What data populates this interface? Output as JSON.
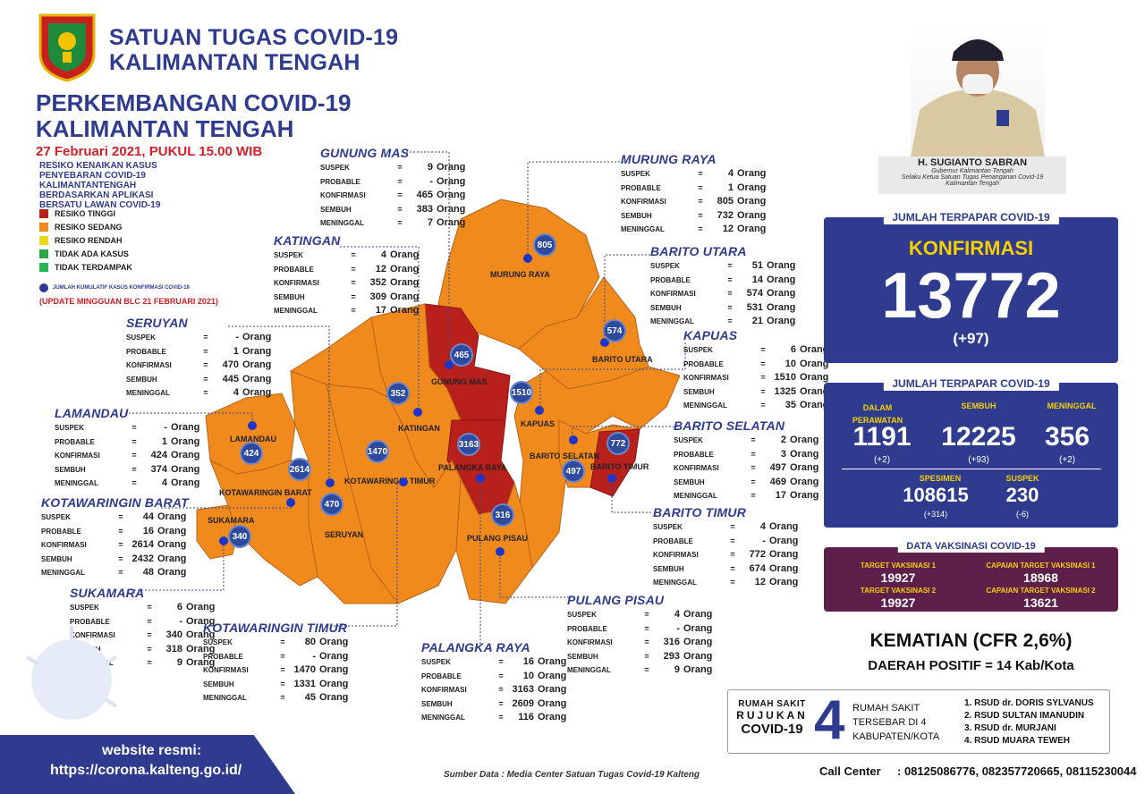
{
  "header": {
    "title_line1": "SATUAN TUGAS COVID-19",
    "title_line2": "KALIMANTAN TENGAH",
    "main_title_line1": "PERKEMBANGAN COVID-19",
    "main_title_line2": "KALIMANTAN TENGAH",
    "date": "27 Februari 2021, PUKUL 15.00 WIB"
  },
  "legend": {
    "heading": "RESIKO KENAIKAN KASUS PENYEBARAN COVID-19 KALIMANTANTENGAH BERDASARKAN APLIKASI BERSATU LAWAN COVID-19",
    "items": [
      {
        "label": "RESIKO TINGGI",
        "color": "#b8201c"
      },
      {
        "label": "RESIKO SEDANG",
        "color": "#f08a1d"
      },
      {
        "label": "RESIKO RENDAH",
        "color": "#e8d81a"
      },
      {
        "label": "TIDAK ADA KASUS",
        "color": "#2aa848"
      },
      {
        "label": "TIDAK TERDAMPAK",
        "color": "#2bb35a"
      }
    ],
    "note": "JUMLAH KUMULATIF KASUS KONFIRMASI COVID-19",
    "update": "(UPDATE MINGGUAN BLC 21 FEBRUARI 2021)"
  },
  "row_labels": {
    "suspek": "SUSPEK",
    "probable": "PROBABLE",
    "konfirmasi": "KONFIRMASI",
    "sembuh": "SEMBUH",
    "meninggal": "MENINGGAL",
    "eq": "=",
    "unit": "Orang"
  },
  "regions": {
    "gunung_mas": {
      "name": "GUNUNG MAS",
      "suspek": "9",
      "probable": "-",
      "konfirmasi": "465",
      "sembuh": "383",
      "meninggal": "7"
    },
    "murung_raya": {
      "name": "MURUNG RAYA",
      "suspek": "4",
      "probable": "1",
      "konfirmasi": "805",
      "sembuh": "732",
      "meninggal": "12"
    },
    "katingan": {
      "name": "KATINGAN",
      "suspek": "4",
      "probable": "12",
      "konfirmasi": "352",
      "sembuh": "309",
      "meninggal": "17"
    },
    "barito_utara": {
      "name": "BARITO UTARA",
      "suspek": "51",
      "probable": "14",
      "konfirmasi": "574",
      "sembuh": "531",
      "meninggal": "21"
    },
    "seruyan": {
      "name": "SERUYAN",
      "suspek": "-",
      "probable": "1",
      "konfirmasi": "470",
      "sembuh": "445",
      "meninggal": "4"
    },
    "kapuas": {
      "name": "KAPUAS",
      "suspek": "6",
      "probable": "10",
      "konfirmasi": "1510",
      "sembuh": "1325",
      "meninggal": "35"
    },
    "lamandau": {
      "name": "LAMANDAU",
      "suspek": "-",
      "probable": "1",
      "konfirmasi": "424",
      "sembuh": "374",
      "meninggal": "4"
    },
    "barito_selatan": {
      "name": "BARITO SELATAN",
      "suspek": "2",
      "probable": "3",
      "konfirmasi": "497",
      "sembuh": "469",
      "meninggal": "17"
    },
    "kotawaringin_barat": {
      "name": "KOTAWARINGIN BARAT",
      "suspek": "44",
      "probable": "16",
      "konfirmasi": "2614",
      "sembuh": "2432",
      "meninggal": "48"
    },
    "barito_timur": {
      "name": "BARITO TIMUR",
      "suspek": "4",
      "probable": "-",
      "konfirmasi": "772",
      "sembuh": "674",
      "meninggal": "12"
    },
    "sukamara": {
      "name": "SUKAMARA",
      "suspek": "6",
      "probable": "-",
      "konfirmasi": "340",
      "sembuh": "318",
      "meninggal": "9"
    },
    "pulang_pisau": {
      "name": "PULANG PISAU",
      "suspek": "4",
      "probable": "-",
      "konfirmasi": "316",
      "sembuh": "293",
      "meninggal": "9"
    },
    "kotawaringin_timur": {
      "name": "KOTAWARINGIN TIMUR",
      "suspek": "80",
      "probable": "-",
      "konfirmasi": "1470",
      "sembuh": "1331",
      "meninggal": "45"
    },
    "palangka_raya": {
      "name": "PALANGKA RAYA",
      "suspek": "16",
      "probable": "10",
      "konfirmasi": "3163",
      "sembuh": "2609",
      "meninggal": "116"
    }
  },
  "map_labels": {
    "murung_raya": "MURUNG RAYA",
    "barito_utara": "BARITO UTARA",
    "gunung_mas": "GUNUNG MAS",
    "kapuas": "KAPUAS",
    "katingan": "KATINGAN",
    "lamandau": "LAMANDAU",
    "kotawaringin_barat": "KOTAWARINGIN BARAT",
    "kotawaringin_timur": "KOTAWARINGIN TIMUR",
    "palangka_raya": "PALANGKA RAYA",
    "barito_selatan": "BARITO SELATAN",
    "barito_timur": "BARITO TIMUR",
    "sukamara": "SUKAMARA",
    "seruyan": "SERUYAN",
    "pulang_pisau": "PULANG PISAU"
  },
  "map_counts": {
    "murung_raya": "805",
    "barito_utara": "574",
    "gunung_mas": "465",
    "katingan": "352",
    "kapuas": "1510",
    "kotawaringin_timur": "1470",
    "palangka_raya": "3163",
    "barito_timur": "772",
    "barito_selatan": "497",
    "lamandau": "424",
    "kotawaringin_barat": "2614",
    "seruyan": "470",
    "sukamara": "340",
    "pulang_pisau": "316"
  },
  "governor": {
    "name": "H. SUGIANTO SABRAN",
    "role1": "Gubernur Kalimantan Tengah",
    "role2": "Selaku Ketua Satuan Tugas Penanganan Covid-19",
    "role3": "Kalimantan Tengah"
  },
  "terpapar": {
    "title": "JUMLAH TERPAPAR COVID-19",
    "konfirmasi_label": "KONFIRMASI",
    "konfirmasi_value": "13772",
    "konfirmasi_delta": "(+97)"
  },
  "detail": {
    "title": "JUMLAH TERPAPAR COVID-19",
    "dalam_perawatan_label": "DALAM PERAWATAN",
    "dalam_perawatan_value": "1191",
    "dalam_perawatan_delta": "(+2)",
    "sembuh_label": "SEMBUH",
    "sembuh_value": "12225",
    "sembuh_delta": "(+93)",
    "meninggal_label": "MENINGGAL",
    "meninggal_value": "356",
    "meninggal_delta": "(+2)",
    "spesimen_label": "SPESIMEN",
    "spesimen_value": "108615",
    "spesimen_delta": "(+314)",
    "suspek_label": "SUSPEK",
    "suspek_value": "230",
    "suspek_delta": "(-6)"
  },
  "vaksin": {
    "title": "DATA VAKSINASI COVID-19",
    "target1_label": "TARGET VAKSINASI 1",
    "target1_value": "19927",
    "capaian1_label": "CAPAIAN TARGET VAKSINASI 1",
    "capaian1_value": "18968",
    "target2_label": "TARGET VAKSINASI 2",
    "target2_value": "19927",
    "capaian2_label": "CAPAIAN TARGET VAKSINASI 2",
    "capaian2_value": "13621"
  },
  "kematian": {
    "cfr": "KEMATIAN (CFR 2,6%)",
    "daerah": "DAERAH POSITIF = 14 Kab/Kota"
  },
  "rumah_sakit": {
    "left1": "RUMAH SAKIT",
    "left2": "RUJUKAN",
    "left3": "COVID-19",
    "big": "4",
    "mid1": "RUMAH SAKIT",
    "mid2": "TERSEBAR DI 4",
    "mid3": "KABUPATEN/KOTA",
    "list": [
      "1. RSUD dr. DORIS SYLVANUS",
      "2. RSUD SULTAN IMANUDIN",
      "3. RSUD dr. MURJANI",
      "4. RSUD MUARA TEWEH"
    ]
  },
  "call_center": {
    "label": "Call Center",
    "numbers": ": 08125086776, 082357720665, 08115230044"
  },
  "website": {
    "label": "website resmi:",
    "url": "https://corona.kalteng.go.id/"
  },
  "source": "Sumber Data : Media Center Satuan Tugas Covid-19 Kalteng"
}
